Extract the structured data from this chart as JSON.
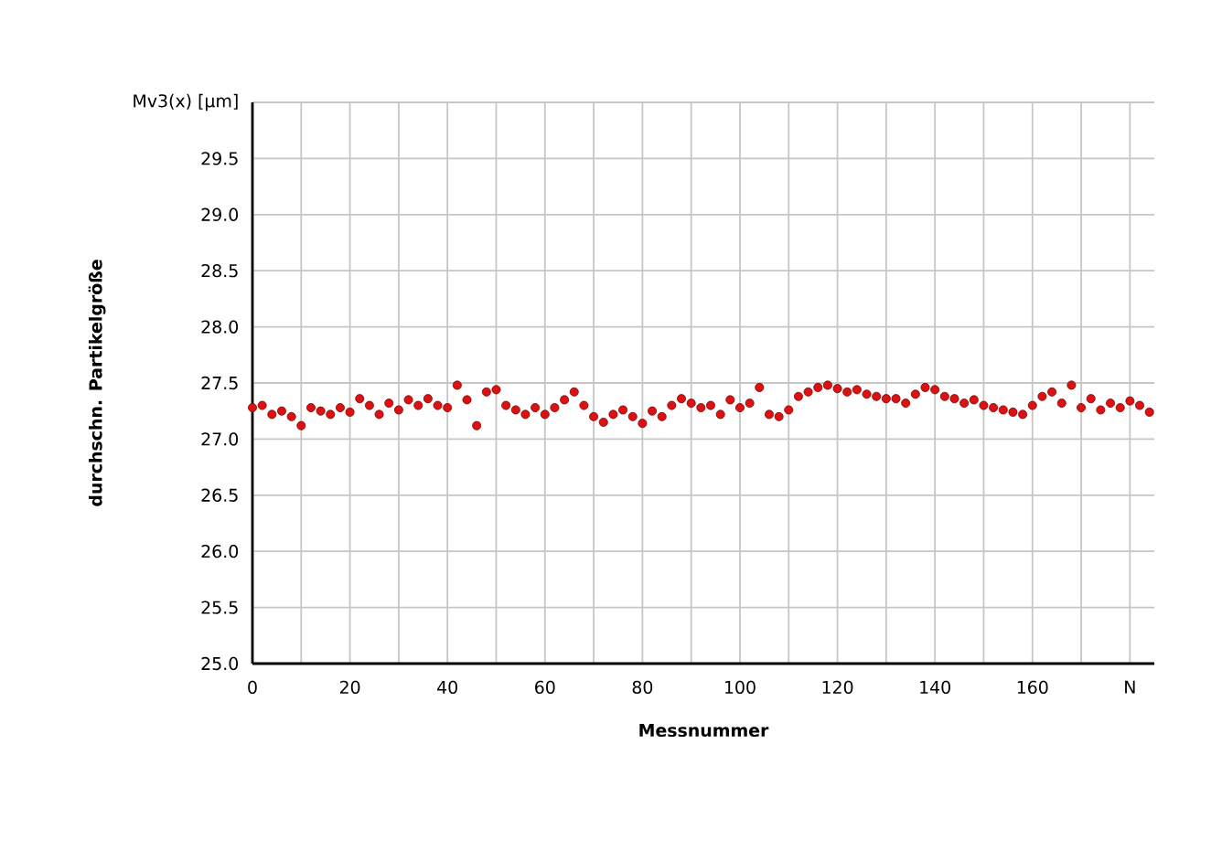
{
  "chart_data": {
    "type": "scatter",
    "xlabel": "Messnummer",
    "ylabel": "durchschn. Partikelgröße",
    "xlim": [
      0,
      185
    ],
    "ylim": [
      25,
      30
    ],
    "xticks": [
      0,
      {
        "value": 10,
        "label": null
      },
      20,
      {
        "value": 30,
        "label": null
      },
      40,
      {
        "value": 50,
        "label": null
      },
      60,
      {
        "value": 70,
        "label": null
      },
      80,
      {
        "value": 90,
        "label": null
      },
      100,
      {
        "value": 110,
        "label": null
      },
      120,
      {
        "value": 130,
        "label": null
      },
      140,
      {
        "value": 150,
        "label": null
      },
      160,
      {
        "value": 170,
        "label": null
      },
      {
        "value": 180,
        "label": "N"
      }
    ],
    "yticks": [
      {
        "value": 25,
        "label": "25.0"
      },
      25.5,
      {
        "value": 26,
        "label": "26.0"
      },
      26.5,
      {
        "value": 27,
        "label": "27.0"
      },
      27.5,
      {
        "value": 28,
        "label": "28.0"
      },
      28.5,
      {
        "value": 29,
        "label": "29.0"
      },
      29.5,
      {
        "value": 30,
        "label": "Mv3(x) [µm]"
      }
    ],
    "grid": true,
    "marker": "circle",
    "series": [
      {
        "color": "#dd1111",
        "x": [
          0,
          2,
          4,
          6,
          8,
          10,
          12,
          14,
          16,
          18,
          20,
          22,
          24,
          26,
          28,
          30,
          32,
          34,
          36,
          38,
          40,
          42,
          44,
          46,
          48,
          50,
          52,
          54,
          56,
          58,
          60,
          62,
          64,
          66,
          68,
          70,
          72,
          74,
          76,
          78,
          80,
          82,
          84,
          86,
          88,
          90,
          92,
          94,
          96,
          98,
          100,
          102,
          104,
          106,
          108,
          110,
          112,
          114,
          116,
          118,
          120,
          122,
          124,
          126,
          128,
          130,
          132,
          134,
          136,
          138,
          140,
          142,
          144,
          146,
          148,
          150,
          152,
          154,
          156,
          158,
          160,
          162,
          164,
          166,
          168,
          170,
          172,
          174,
          176,
          178,
          180,
          182,
          184
        ],
        "values": [
          27.28,
          27.3,
          27.22,
          27.25,
          27.2,
          27.12,
          27.28,
          27.25,
          27.22,
          27.28,
          27.24,
          27.36,
          27.3,
          27.22,
          27.32,
          27.26,
          27.35,
          27.3,
          27.36,
          27.3,
          27.28,
          27.48,
          27.35,
          27.12,
          27.42,
          27.44,
          27.3,
          27.26,
          27.22,
          27.28,
          27.22,
          27.28,
          27.35,
          27.42,
          27.3,
          27.2,
          27.15,
          27.22,
          27.26,
          27.2,
          27.14,
          27.25,
          27.2,
          27.3,
          27.36,
          27.32,
          27.28,
          27.3,
          27.22,
          27.35,
          27.28,
          27.32,
          27.46,
          27.22,
          27.2,
          27.26,
          27.38,
          27.42,
          27.46,
          27.48,
          27.45,
          27.42,
          27.44,
          27.4,
          27.38,
          27.36,
          27.36,
          27.32,
          27.4,
          27.46,
          27.44,
          27.38,
          27.36,
          27.32,
          27.35,
          27.3,
          27.28,
          27.26,
          27.24,
          27.22,
          27.3,
          27.38,
          27.42,
          27.32,
          27.48,
          27.28,
          27.36,
          27.26,
          27.32,
          27.28,
          27.34,
          27.3,
          27.24
        ]
      }
    ]
  }
}
